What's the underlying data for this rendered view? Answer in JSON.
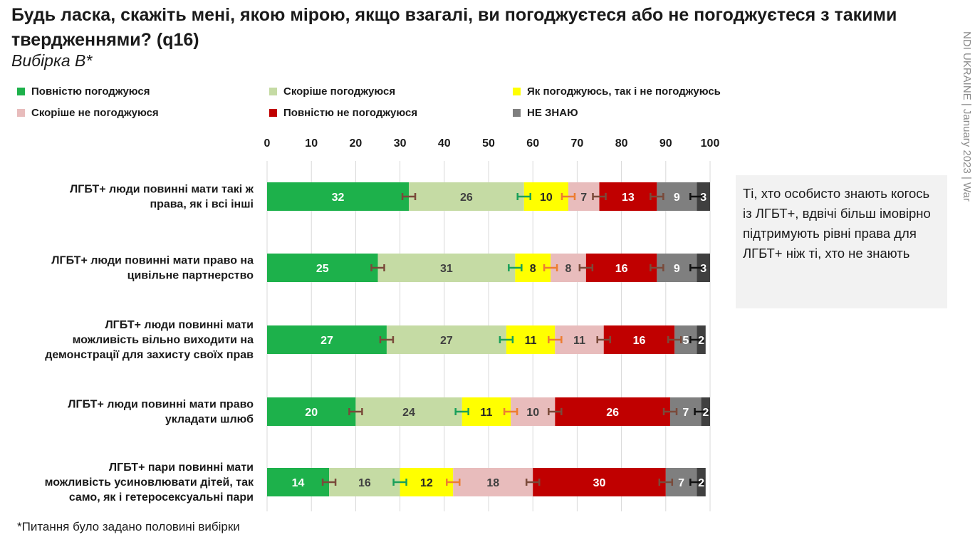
{
  "title": "Будь ласка, скажіть мені, якою мірою, якщо взагалі, ви погоджуєтеся або не погоджуєтеся з такими твердженнями? (q16)",
  "subtitle": "Вибірка В*",
  "side_source": "NDI UKRAINE | January 2023 | War",
  "callout_text": "Ті, хто особисто знають когось із ЛГБТ+, вдвічі більш імовірно підтримують рівні права для ЛГБТ+ ніж ті, хто не знають",
  "footnote": "*Питання було задано половині вибірки",
  "legend": [
    {
      "label": "Повністю погоджуюся",
      "color": "#1db14b"
    },
    {
      "label": "Скоріше погоджуюся",
      "color": "#c5dba4"
    },
    {
      "label": "Як погоджуюсь, так і не погоджуюсь",
      "color": "#ffff00"
    },
    {
      "label": "Скоріше не погоджуюся",
      "color": "#e8bcbc"
    },
    {
      "label": "Повністю не погоджуюся",
      "color": "#c00000"
    },
    {
      "label": "НЕ ЗНАЮ",
      "color": "#7f7f7f"
    }
  ],
  "chart_data": {
    "type": "bar",
    "orientation": "horizontal",
    "stacked": true,
    "xlim": [
      0,
      100
    ],
    "xticks": [
      0,
      10,
      20,
      30,
      40,
      50,
      60,
      70,
      80,
      90,
      100
    ],
    "axis_position": "top",
    "grid": true,
    "legend_position": "top",
    "error_bars": true,
    "categories": [
      [
        "ЛГБТ+ люди повинні мати такі ж",
        "права, як і всі інші"
      ],
      [
        "ЛГБТ+ люди повинні мати право на",
        "цивільне партнерство"
      ],
      [
        "ЛГБТ+ люди повинні мати",
        "можливість вільно виходити на",
        "демонстрації для захисту своїх прав"
      ],
      [
        "ЛГБТ+ люди повинні мати право",
        "укладати шлюб"
      ],
      [
        "ЛГБТ+ пари повинні мати",
        "можливість усиновлювати дітей, так",
        "само, як і гетеросексуальні пари"
      ]
    ],
    "series": [
      {
        "name": "Повністю погоджуюся",
        "color": "#1db14b",
        "label_color": "#ffffff",
        "errbar_color": "#7a4a3a",
        "values": [
          32,
          25,
          27,
          20,
          14
        ]
      },
      {
        "name": "Скоріше погоджуюся",
        "color": "#c5dba4",
        "label_color": "#404040",
        "errbar_color": "#1aa05a",
        "values": [
          26,
          31,
          27,
          24,
          16
        ]
      },
      {
        "name": "Як погоджуюсь, так і не погоджуюсь",
        "color": "#ffff00",
        "label_color": "#262626",
        "errbar_color": "#ed7d31",
        "values": [
          10,
          8,
          11,
          11,
          12
        ]
      },
      {
        "name": "Скоріше не погоджуюся",
        "color": "#e8bcbc",
        "label_color": "#404040",
        "errbar_color": "#7a4a3a",
        "values": [
          7,
          8,
          11,
          10,
          18
        ]
      },
      {
        "name": "Повністю не погоджуюся",
        "color": "#c00000",
        "label_color": "#ffffff",
        "errbar_color": "#7a4a3a",
        "values": [
          13,
          16,
          16,
          26,
          30
        ]
      },
      {
        "name": "НЕ ЗНАЮ",
        "color": "#7f7f7f",
        "label_color": "#ffffff",
        "errbar_color": "#111111",
        "values": [
          9,
          9,
          5,
          7,
          7
        ]
      },
      {
        "name": "",
        "color": "#404040",
        "label_color": "#ffffff",
        "errbar_color": "",
        "values": [
          3,
          3,
          2,
          2,
          2
        ]
      }
    ]
  }
}
